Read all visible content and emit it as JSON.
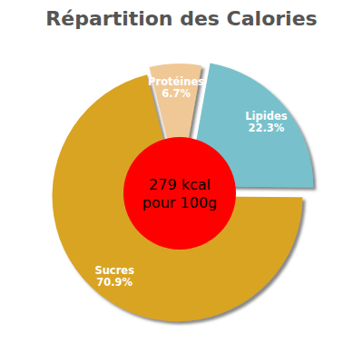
{
  "chart_data": {
    "type": "pie",
    "title": "Répartition des Calories",
    "categories": [
      "Protéines",
      "Lipides",
      "Sucres"
    ],
    "values": [
      6.7,
      22.3,
      70.9
    ],
    "value_labels": [
      "6.7%",
      "22.3%",
      "70.9%"
    ],
    "colors": [
      "#f0c896",
      "#78c1cc",
      "#d9a422"
    ],
    "data_labels": true,
    "annotations": [
      "279 kcal",
      "pour 100g"
    ]
  }
}
